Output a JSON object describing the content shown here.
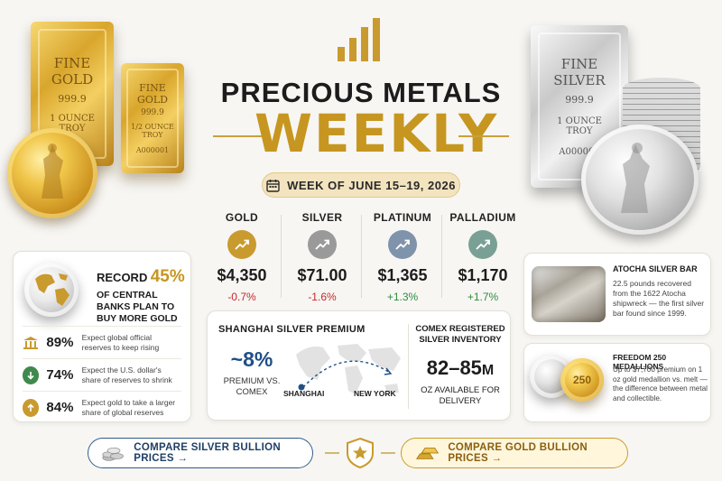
{
  "gold_bar_large": {
    "line1": "FINE",
    "line2": "GOLD",
    "purity": "999.9",
    "weight": "1 OUNCE",
    "unit": "TROY"
  },
  "gold_bar_small": {
    "line1": "FINE",
    "line2": "GOLD",
    "purity": "999.9",
    "weight": "1/2 OUNCE",
    "unit": "TROY",
    "serial": "A000001"
  },
  "silver_bar": {
    "line1": "FINE",
    "line2": "SILVER",
    "purity": "999.9",
    "weight": "1 OUNCE",
    "unit": "TROY",
    "serial": "A000001"
  },
  "header": {
    "title_line1": "PRECIOUS METALS",
    "title_line2": "WEEKLY",
    "week_label": "WEEK OF JUNE 15–19, 2026"
  },
  "metals": [
    {
      "name": "GOLD",
      "price": "$4,350",
      "change": "-0.7%",
      "direction": "down",
      "color": "#c99a2e"
    },
    {
      "name": "SILVER",
      "price": "$71.00",
      "change": "-1.6%",
      "direction": "down",
      "color": "#9a9a9a"
    },
    {
      "name": "PLATINUM",
      "price": "$1,365",
      "change": "+1.3%",
      "direction": "up",
      "color": "#7f93ab"
    },
    {
      "name": "PALLADIUM",
      "price": "$1,170",
      "change": "+1.7%",
      "direction": "up",
      "color": "#7aa095"
    }
  ],
  "central_banks": {
    "record_word": "RECORD",
    "percent": "45%",
    "text": "OF CENTRAL BANKS PLAN TO BUY MORE GOLD",
    "stats": [
      {
        "icon": "bank-icon",
        "value": "89%",
        "text": "Expect global official reserves to keep rising"
      },
      {
        "icon": "down-arrow-icon",
        "value": "74%",
        "text": "Expect the U.S. dollar's share of reserves to shrink"
      },
      {
        "icon": "up-arrow-icon",
        "value": "84%",
        "text": "Expect gold to take a larger share of global reserves"
      }
    ]
  },
  "shanghai": {
    "title": "SHANGHAI SILVER PREMIUM",
    "value": "~8%",
    "label": "PREMIUM VS. COMEX",
    "from_city": "SHANGHAI",
    "to_city": "NEW YORK"
  },
  "comex": {
    "title": "COMEX REGISTERED SILVER INVENTORY",
    "value": "82–85",
    "unit": "M",
    "label": "OZ AVAILABLE FOR DELIVERY"
  },
  "atocha": {
    "title": "ATOCHA SILVER BAR",
    "text": "22.5 pounds recovered from the 1622 Atocha shipwreck — the first silver bar found since 1999."
  },
  "freedom": {
    "title": "FREEDOM 250 MEDALLIONS",
    "text": "Up to $7,700 premium on 1 oz gold medallion vs. melt — the difference between metal and collectible.",
    "coin_text": "250"
  },
  "buttons": {
    "silver": "COMPARE SILVER BULLION PRICES →",
    "gold": "COMPARE GOLD BULLION PRICES →"
  }
}
